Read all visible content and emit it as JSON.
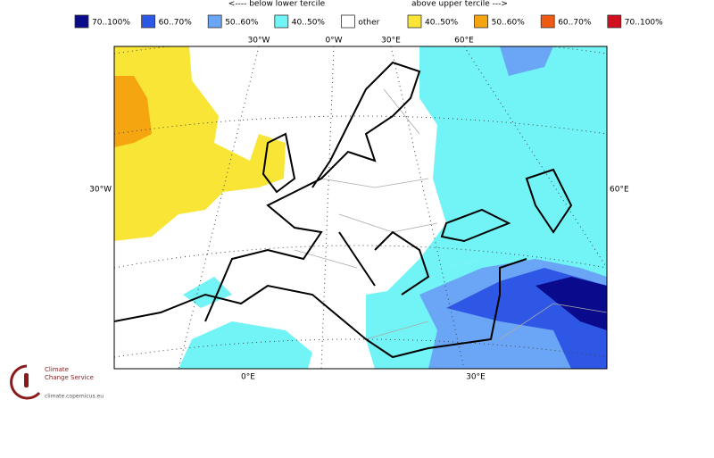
{
  "legend": {
    "below": "<---- below lower tercile",
    "above": "above upper tercile --->",
    "items": [
      {
        "label": "70..100%",
        "color": "#0a0a8c"
      },
      {
        "label": "60..70%",
        "color": "#2f57e6"
      },
      {
        "label": "50..60%",
        "color": "#6aa6f5"
      },
      {
        "label": "40..50%",
        "color": "#72f3f5"
      },
      {
        "label": "other",
        "color": "#ffffff"
      },
      {
        "label": "40..50%",
        "color": "#f8e535"
      },
      {
        "label": "50..60%",
        "color": "#f5a50f"
      },
      {
        "label": "60..70%",
        "color": "#ef5a12"
      },
      {
        "label": "70..100%",
        "color": "#d20f1e"
      }
    ]
  },
  "graticule": {
    "top": [
      "30°W",
      "0°W",
      "30°E",
      "60°E"
    ],
    "left": "30°W",
    "right": "60°E",
    "bottom": [
      "0°E",
      "30°E"
    ]
  },
  "logo": {
    "line1": "Climate",
    "line2": "Change Service",
    "url": "climate.copernicus.eu"
  }
}
